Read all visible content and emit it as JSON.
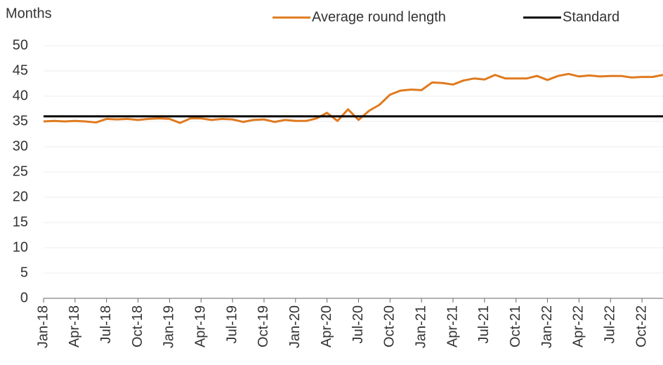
{
  "chart_data": {
    "type": "line",
    "y_label": "Months",
    "categories": [
      "Jan-18",
      null,
      null,
      "Apr-18",
      null,
      null,
      "Jul-18",
      null,
      null,
      "Oct-18",
      null,
      null,
      "Jan-19",
      null,
      null,
      "Apr-19",
      null,
      null,
      "Jul-19",
      null,
      null,
      "Oct-19",
      null,
      null,
      "Jan-20",
      null,
      null,
      "Apr-20",
      null,
      null,
      "Jul-20",
      null,
      null,
      "Oct-20",
      null,
      null,
      "Jan-21",
      null,
      null,
      "Apr-21",
      null,
      null,
      "Jul-21",
      null,
      null,
      "Oct-21",
      null,
      null,
      "Jan-22",
      null,
      null,
      "Apr-22",
      null,
      null,
      "Jul-22",
      null,
      null,
      "Oct-22",
      null,
      null
    ],
    "series": [
      {
        "name": "Average round length",
        "color": "#e07a1f",
        "values": [
          35.0,
          35.1,
          35.0,
          35.1,
          35.0,
          34.8,
          35.5,
          35.4,
          35.5,
          35.3,
          35.5,
          35.6,
          35.5,
          34.7,
          35.6,
          35.6,
          35.3,
          35.5,
          35.4,
          34.9,
          35.3,
          35.4,
          34.9,
          35.3,
          35.1,
          35.1,
          35.6,
          36.7,
          35.1,
          37.4,
          35.3,
          37.1,
          38.3,
          40.3,
          41.1,
          41.3,
          41.2,
          42.7,
          42.6,
          42.3,
          43.1,
          43.5,
          43.3,
          44.2,
          43.5,
          43.5,
          43.5,
          44.0,
          43.2,
          44.0,
          44.4,
          43.9,
          44.1,
          43.9,
          44.0,
          44.0,
          43.7,
          43.8,
          43.8,
          44.2
        ]
      },
      {
        "name": "Standard",
        "color": "#000000",
        "values": [
          36,
          36,
          36,
          36,
          36,
          36,
          36,
          36,
          36,
          36,
          36,
          36,
          36,
          36,
          36,
          36,
          36,
          36,
          36,
          36,
          36,
          36,
          36,
          36,
          36,
          36,
          36,
          36,
          36,
          36,
          36,
          36,
          36,
          36,
          36,
          36,
          36,
          36,
          36,
          36,
          36,
          36,
          36,
          36,
          36,
          36,
          36,
          36,
          36,
          36,
          36,
          36,
          36,
          36,
          36,
          36,
          36,
          36,
          36,
          36
        ]
      }
    ],
    "ylim": [
      0,
      50
    ],
    "yticks": [
      0,
      5,
      10,
      15,
      20,
      25,
      30,
      35,
      40,
      45,
      50
    ],
    "grid": true,
    "legend": "top-right"
  }
}
